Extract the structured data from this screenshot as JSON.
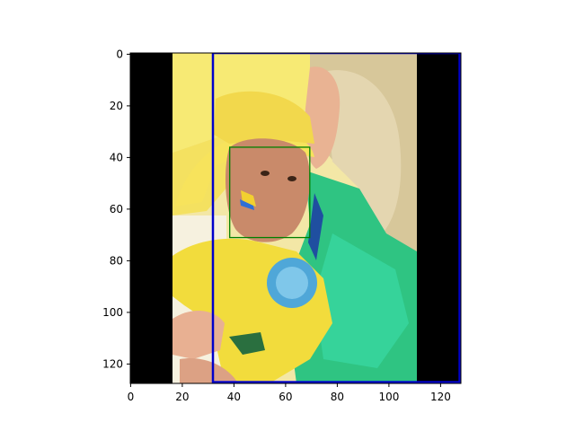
{
  "figure": {
    "axes": {
      "x_ticks": [
        "0",
        "20",
        "40",
        "60",
        "80",
        "100",
        "120"
      ],
      "y_ticks": [
        "0",
        "20",
        "40",
        "60",
        "80",
        "100",
        "120"
      ],
      "xlim": [
        0,
        128
      ],
      "ylim": [
        128,
        0
      ],
      "y_inverted": true,
      "grid": false
    },
    "image": {
      "description": "photo of a child with Brazil-flag face paint and yellow hat, held by a blonde woman wearing a green flag",
      "background_bars": "black",
      "width_data": 128,
      "height_data": 128
    },
    "boxes": [
      {
        "name": "outer-box",
        "color": "#0000cc",
        "x0": 32,
        "y0": 0,
        "x1": 127.5,
        "y1": 127.5
      },
      {
        "name": "face-box",
        "color": "#008000",
        "x0": 38.5,
        "y0": 36.5,
        "x1": 69.5,
        "y1": 71.5
      }
    ]
  }
}
